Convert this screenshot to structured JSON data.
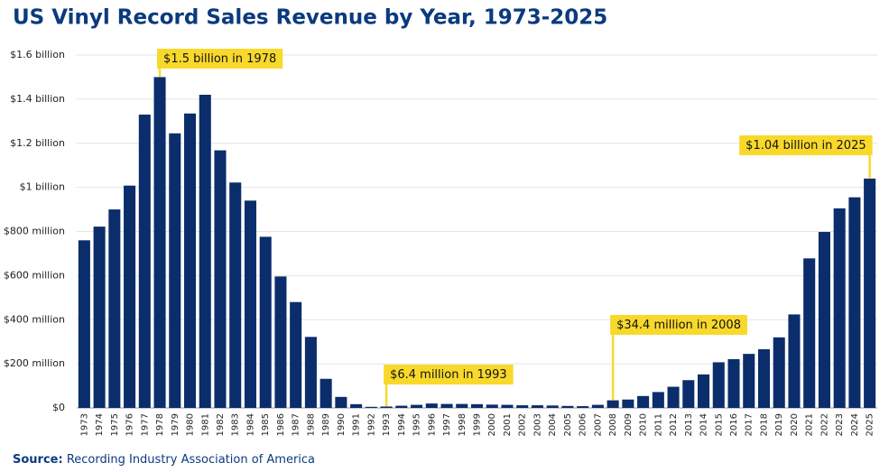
{
  "chart_data": {
    "type": "bar",
    "title": "US Vinyl Record Sales Revenue by Year, 1973-2025",
    "categories": [
      "1973",
      "1974",
      "1975",
      "1976",
      "1977",
      "1978",
      "1979",
      "1980",
      "1981",
      "1982",
      "1983",
      "1984",
      "1985",
      "1986",
      "1987",
      "1988",
      "1989",
      "1990",
      "1991",
      "1992",
      "1993",
      "1994",
      "1995",
      "1996",
      "1997",
      "1998",
      "1999",
      "2000",
      "2001",
      "2002",
      "2003",
      "2004",
      "2005",
      "2006",
      "2007",
      "2008",
      "2009",
      "2010",
      "2011",
      "2012",
      "2013",
      "2014",
      "2015",
      "2016",
      "2017",
      "2018",
      "2019",
      "2020",
      "2021",
      "2022",
      "2023",
      "2024",
      "2025"
    ],
    "values": [
      760,
      822,
      900,
      1008,
      1330,
      1500,
      1245,
      1335,
      1420,
      1168,
      1022,
      940,
      776,
      596,
      480,
      322,
      132,
      50,
      17,
      5,
      6.4,
      10,
      14,
      20,
      18,
      18,
      17,
      15,
      14,
      12,
      12,
      11,
      9,
      8,
      14,
      34.4,
      38,
      54,
      72,
      96,
      126,
      152,
      207,
      221,
      245,
      266,
      320,
      424,
      678,
      798,
      905,
      955,
      1040
    ],
    "color": "#0b2d6b",
    "ylim": [
      0,
      1600
    ],
    "yticks": [
      {
        "value": 0,
        "label": "$0"
      },
      {
        "value": 200,
        "label": "$200 million"
      },
      {
        "value": 400,
        "label": "$400 million"
      },
      {
        "value": 600,
        "label": "$600 million"
      },
      {
        "value": 800,
        "label": "$800 million"
      },
      {
        "value": 1000,
        "label": "$1 billion"
      },
      {
        "value": 1200,
        "label": "$1.2 billion"
      },
      {
        "value": 1400,
        "label": "$1.4 billion"
      },
      {
        "value": 1600,
        "label": "$1.6 billion"
      }
    ],
    "grid": true,
    "annotations": [
      {
        "text": "$1.5 billion in 1978",
        "category": "1978"
      },
      {
        "text": "$6.4 million in 1993",
        "category": "1993"
      },
      {
        "text": "$34.4 million in 2008",
        "category": "2008"
      },
      {
        "text": "$1.04 billion in 2025",
        "category": "2025"
      }
    ],
    "source_label": "Source:",
    "source": "Recording Industry Association of America"
  }
}
